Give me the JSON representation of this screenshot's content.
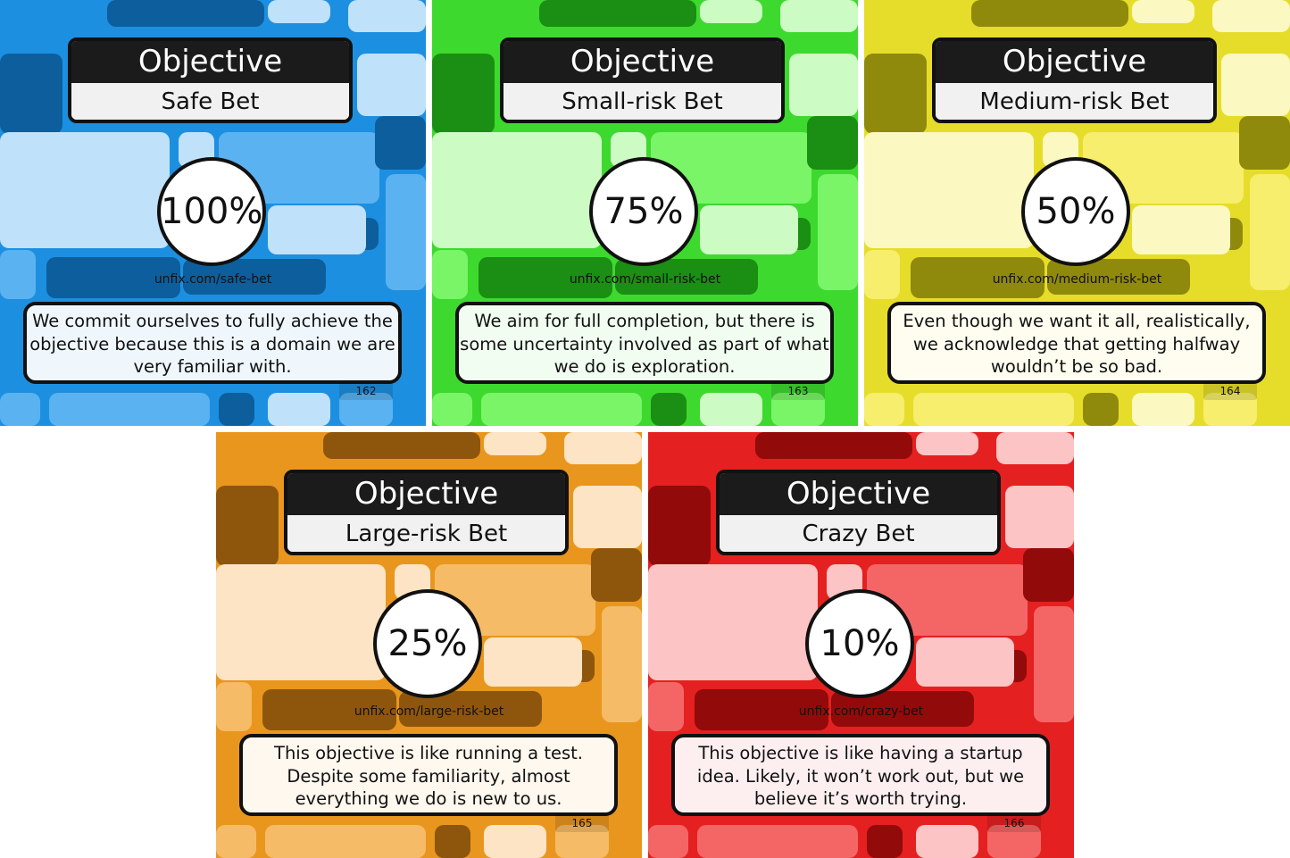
{
  "cards": [
    {
      "title": "Objective",
      "subtitle": "Safe Bet",
      "percent": "100%",
      "url": "unfix.com/safe-bet",
      "description": "We commit ourselves to fully achieve the objective because this is a domain we are very familiar with.",
      "page": "162",
      "colors": {
        "base": "#1d8fe0",
        "light": "#bfe1fa",
        "mid": "#5ab3f0",
        "dark": "#0d5e9c"
      }
    },
    {
      "title": "Objective",
      "subtitle": "Small-risk Bet",
      "percent": "75%",
      "url": "unfix.com/small-risk-bet",
      "description": "We aim for full completion, but there is some uncertainty involved as part of what we do is exploration.",
      "page": "163",
      "colors": {
        "base": "#3ed92e",
        "light": "#cdfbc4",
        "mid": "#79f567",
        "dark": "#1b8e14"
      }
    },
    {
      "title": "Objective",
      "subtitle": "Medium-risk Bet",
      "percent": "50%",
      "url": "unfix.com/medium-risk-bet",
      "description": "Even though we want it all, realistically, we acknowledge that getting halfway wouldn’t be so bad.",
      "page": "164",
      "colors": {
        "base": "#e6dd2a",
        "light": "#fbf8c2",
        "mid": "#f6ee6c",
        "dark": "#8f8a0c"
      }
    },
    {
      "title": "Objective",
      "subtitle": "Large-risk Bet",
      "percent": "25%",
      "url": "unfix.com/large-risk-bet",
      "description": "This objective is like running a test. Despite some familiarity, almost everything we do is new to us.",
      "page": "165",
      "colors": {
        "base": "#e9961f",
        "light": "#fde4c4",
        "mid": "#f6bb66",
        "dark": "#8e560c"
      }
    },
    {
      "title": "Objective",
      "subtitle": "Crazy Bet",
      "percent": "10%",
      "url": "unfix.com/crazy-bet",
      "description": "This objective is like having a startup idea. Likely, it won’t work out, but we believe it’s worth trying.",
      "page": "166",
      "colors": {
        "base": "#e52020",
        "light": "#fcc4c4",
        "mid": "#f46666",
        "dark": "#930a0a"
      }
    }
  ]
}
